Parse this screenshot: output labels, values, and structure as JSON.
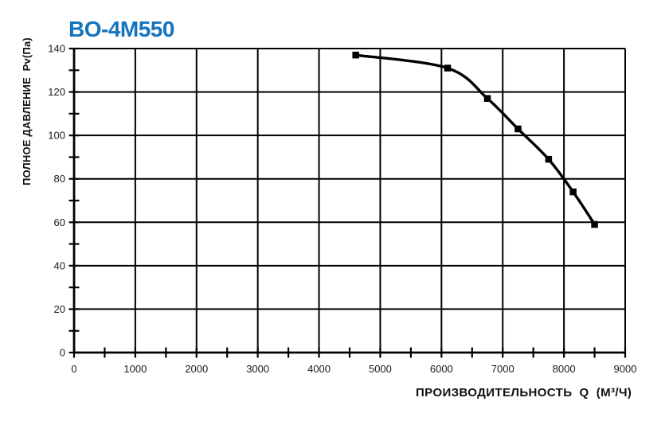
{
  "colors": {
    "title": "#1474bd",
    "grid": "#000000",
    "axis": "#000000",
    "series_line": "#000000",
    "tick_label": "#1a1a1a",
    "background": "#ffffff"
  },
  "chart_data": {
    "type": "line",
    "title": "BO-4M550",
    "xlabel": "ПРОИЗВОДИТЕЛЬНОСТЬ  Q  (М³/Ч)",
    "ylabel": "ПОЛНОЕ ДАВЛЕНИЕ  Pv(Па)",
    "xlim": [
      0,
      9000
    ],
    "ylim": [
      0,
      140
    ],
    "x_ticks": [
      0,
      1000,
      2000,
      3000,
      4000,
      5000,
      6000,
      7000,
      8000,
      9000
    ],
    "y_ticks": [
      0,
      20,
      40,
      60,
      80,
      100,
      120,
      140
    ],
    "x_minor_step": 500,
    "y_minor_step": 10,
    "grid": true,
    "legend": "none",
    "series": [
      {
        "name": "BO-4M550",
        "marker": "square",
        "points": [
          [
            4600,
            137
          ],
          [
            6100,
            131
          ],
          [
            6750,
            117
          ],
          [
            7250,
            103
          ],
          [
            7750,
            89
          ],
          [
            8150,
            74
          ],
          [
            8500,
            59
          ]
        ]
      }
    ]
  }
}
